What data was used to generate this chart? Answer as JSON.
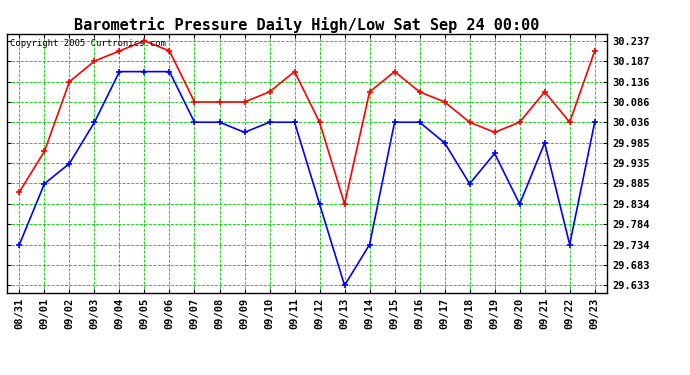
{
  "title": "Barometric Pressure Daily High/Low Sat Sep 24 00:00",
  "copyright_text": "Copyright 2005 Curtronics.com",
  "x_labels": [
    "08/31",
    "09/01",
    "09/02",
    "09/03",
    "09/04",
    "09/05",
    "09/06",
    "09/07",
    "09/08",
    "09/09",
    "09/10",
    "09/11",
    "09/12",
    "09/13",
    "09/14",
    "09/15",
    "09/16",
    "09/17",
    "09/18",
    "09/19",
    "09/20",
    "09/21",
    "09/22",
    "09/23"
  ],
  "high_values": [
    29.864,
    29.964,
    30.136,
    30.187,
    30.212,
    30.237,
    30.212,
    30.086,
    30.086,
    30.086,
    30.111,
    30.161,
    30.036,
    29.834,
    30.111,
    30.161,
    30.111,
    30.086,
    30.036,
    30.011,
    30.036,
    30.111,
    30.036,
    30.212
  ],
  "low_values": [
    29.734,
    29.884,
    29.934,
    30.036,
    30.161,
    30.161,
    30.161,
    30.036,
    30.036,
    30.011,
    30.036,
    30.036,
    29.834,
    29.633,
    29.734,
    30.036,
    30.036,
    29.985,
    29.884,
    29.959,
    29.834,
    29.985,
    29.734,
    30.036
  ],
  "high_color": "#ff0000",
  "low_color": "#0000ff",
  "bg_color": "#ffffff",
  "grid_color": "#00cc00",
  "marker": "+",
  "markersize": 5,
  "linewidth": 1.2,
  "markeredgewidth": 1.2,
  "yticks": [
    29.633,
    29.683,
    29.734,
    29.784,
    29.834,
    29.885,
    29.935,
    29.985,
    30.036,
    30.086,
    30.136,
    30.187,
    30.237
  ],
  "title_fontsize": 11,
  "tick_fontsize": 7.5,
  "copyright_fontsize": 6.5
}
